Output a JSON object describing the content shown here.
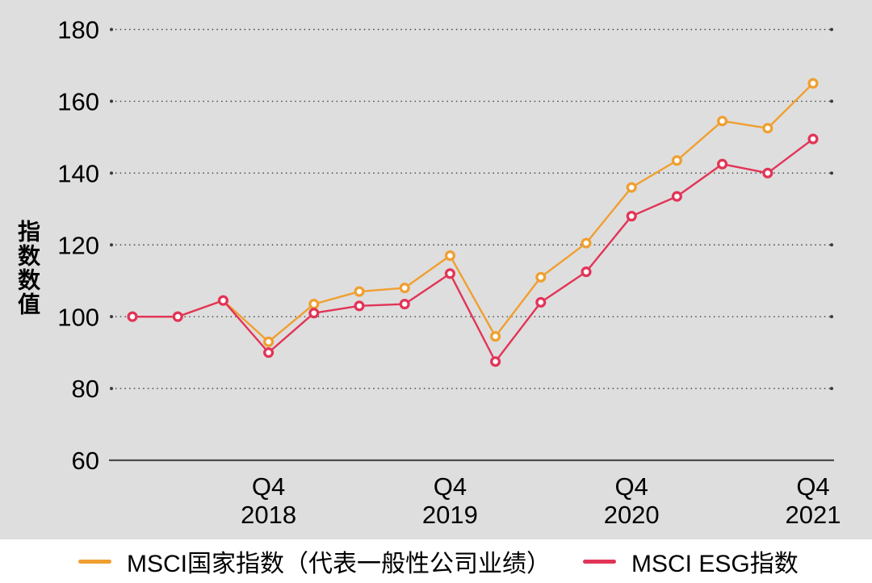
{
  "figure": {
    "background_color": "#dedede",
    "grid_color": "#4a4a4a",
    "axis_line_color": "#4c4c4c",
    "y_axis_title": "指数数值"
  },
  "chart_data": {
    "type": "line",
    "title": "",
    "xlabel": "",
    "ylabel": "指数数值",
    "ylim": [
      60,
      185
    ],
    "y_ticks": [
      60,
      80,
      100,
      120,
      140,
      160,
      180
    ],
    "grid": "horizontal-dotted",
    "legend_position": "bottom",
    "categories": [
      "2018 Q1",
      "2018 Q2",
      "2018 Q3",
      "2018 Q4",
      "2019 Q1",
      "2019 Q2",
      "2019 3",
      "2019 Q4",
      "2020 Q1",
      "2020 Q2",
      "2020 Q3",
      "2020 Q4",
      "2021 Q1",
      "2021 Q2",
      "2021 Q3",
      "2021 Q4"
    ],
    "x_ticks": [
      {
        "index": 3,
        "line1": "Q4",
        "line2": "2018"
      },
      {
        "index": 7,
        "line1": "Q4",
        "line2": "2019"
      },
      {
        "index": 11,
        "line1": "Q4",
        "line2": "2020"
      },
      {
        "index": 15,
        "line1": "Q4",
        "line2": "2021"
      }
    ],
    "series": [
      {
        "name": "MSCI国家指数（代表一般性公司业绩）",
        "color": "#f09f30",
        "values": [
          100,
          100,
          104.5,
          93,
          103.5,
          107,
          108,
          117,
          94.5,
          111,
          120.5,
          136,
          143.5,
          154.5,
          152.5,
          165
        ]
      },
      {
        "name": "MSCI ESG指数",
        "color": "#e23457",
        "values": [
          100,
          100,
          104.5,
          90,
          101,
          103,
          103.5,
          112,
          87.5,
          104,
          112.5,
          128,
          133.5,
          142.5,
          140,
          149.5
        ]
      }
    ]
  }
}
